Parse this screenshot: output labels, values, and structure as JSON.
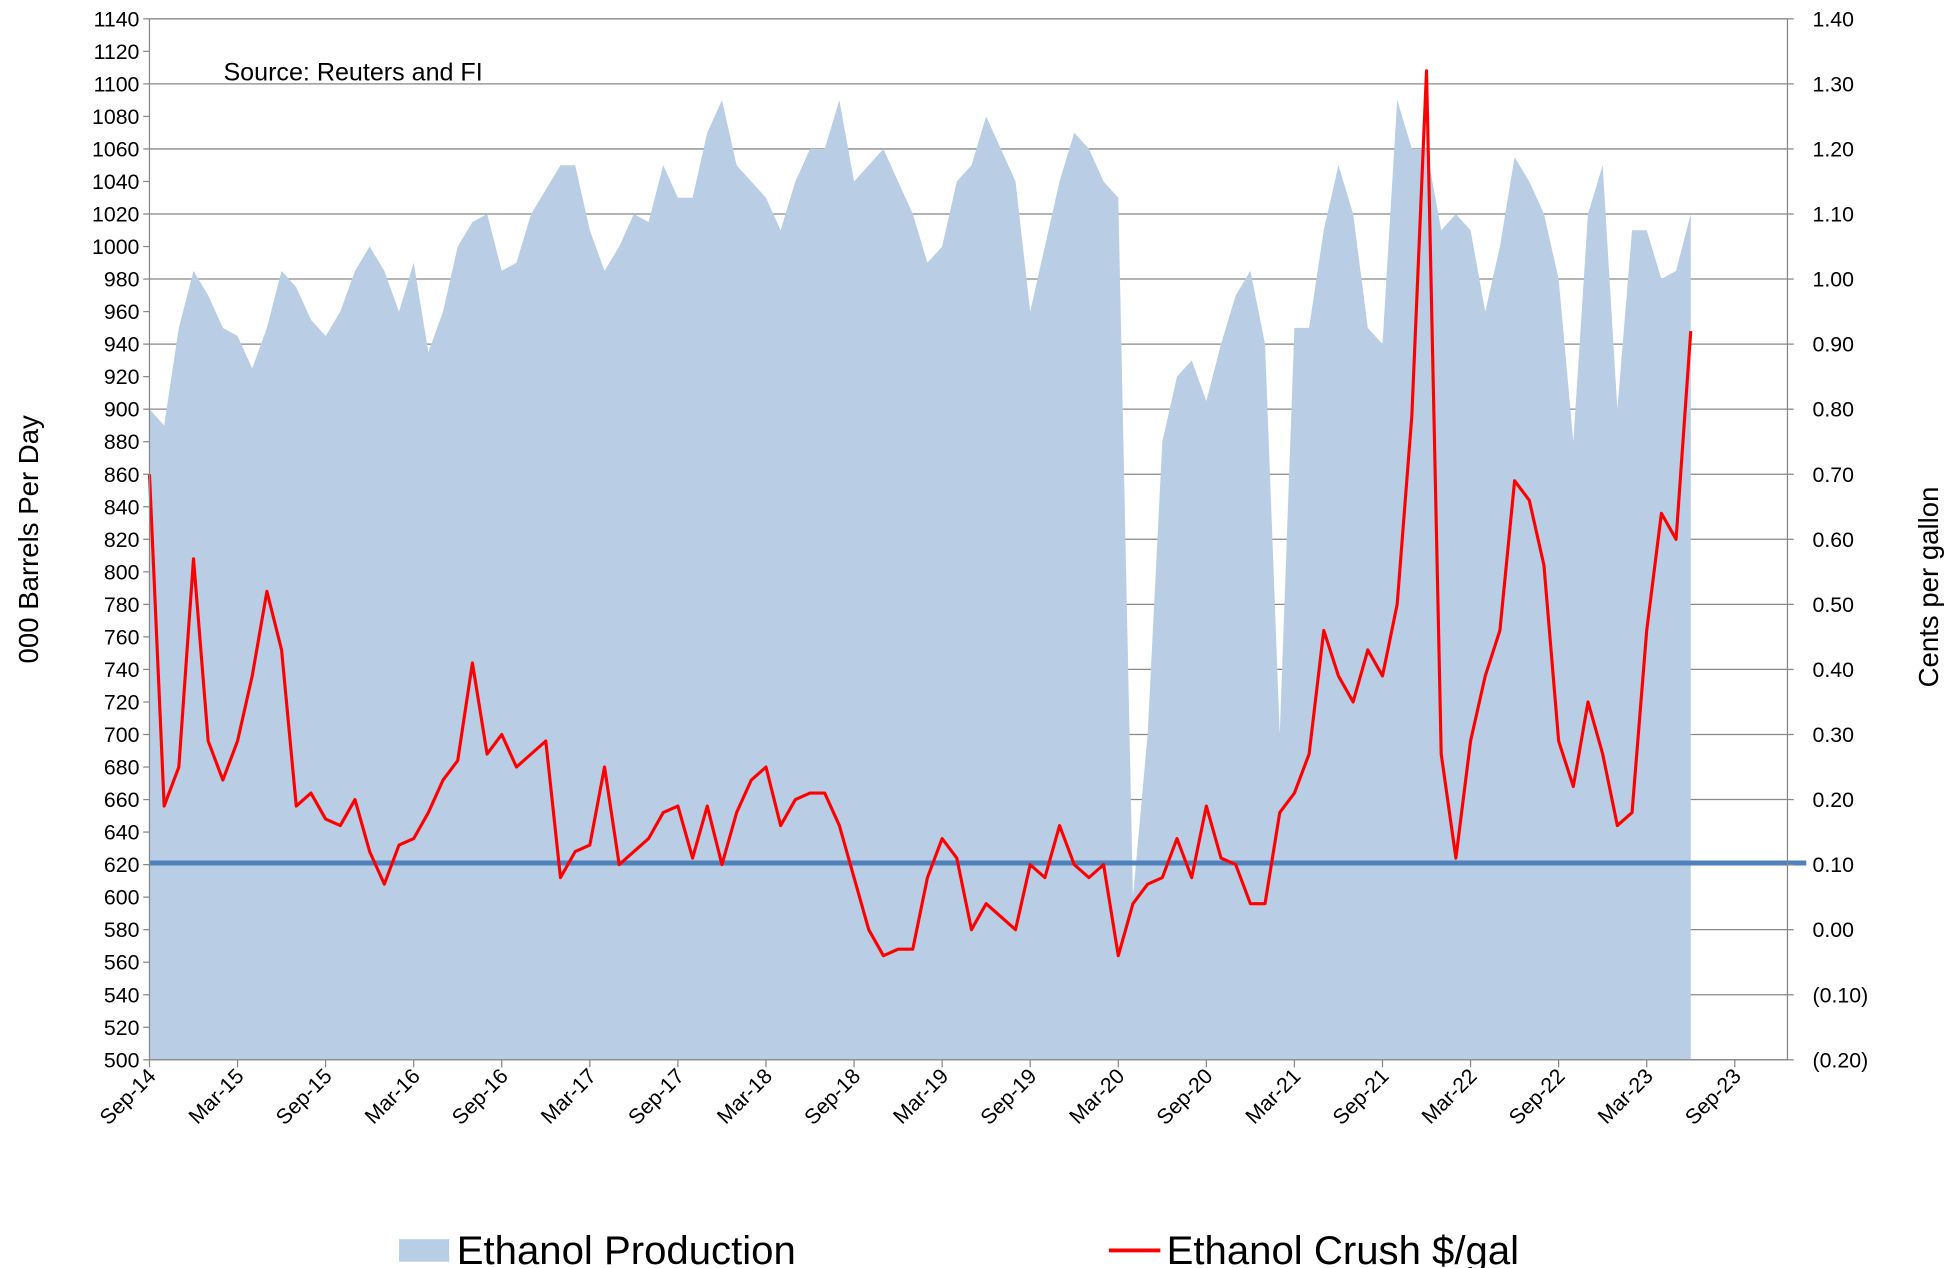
{
  "chart_data": {
    "type": "area_line",
    "annotation": "Source: Reuters and FI",
    "y_label": "000 Barrels Per Day",
    "y2_label": "Cents per gallon",
    "categories": [
      "Sep-14",
      null,
      null,
      null,
      null,
      null,
      "Mar-15",
      null,
      null,
      null,
      null,
      null,
      "Sep-15",
      null,
      null,
      null,
      null,
      null,
      "Mar-16",
      null,
      null,
      null,
      null,
      null,
      "Sep-16",
      null,
      null,
      null,
      null,
      null,
      "Mar-17",
      null,
      null,
      null,
      null,
      null,
      "Sep-17",
      null,
      null,
      null,
      null,
      null,
      "Mar-18",
      null,
      null,
      null,
      null,
      null,
      "Sep-18",
      null,
      null,
      null,
      null,
      null,
      "Mar-19",
      null,
      null,
      null,
      null,
      null,
      "Sep-19",
      null,
      null,
      null,
      null,
      null,
      "Mar-20",
      null,
      null,
      null,
      null,
      null,
      "Sep-20",
      null,
      null,
      null,
      null,
      null,
      "Mar-21",
      null,
      null,
      null,
      null,
      null,
      "Sep-21",
      null,
      null,
      null,
      null,
      null,
      "Mar-22",
      null,
      null,
      null,
      null,
      null,
      "Sep-22",
      null,
      null,
      null,
      null,
      null,
      "Mar-23",
      null,
      null,
      null,
      null,
      null,
      "Sep-23"
    ],
    "series": [
      {
        "name": "Ethanol Production",
        "kind": "area",
        "color": "#b9cde5",
        "values": [
          900,
          890,
          950,
          985,
          970,
          950,
          945,
          925,
          950,
          985,
          975,
          955,
          945,
          960,
          985,
          1000,
          985,
          960,
          990,
          935,
          960,
          1000,
          1015,
          1020,
          985,
          990,
          1020,
          1035,
          1050,
          1050,
          1010,
          985,
          1000,
          1020,
          1015,
          1050,
          1030,
          1030,
          1070,
          1090,
          1050,
          1040,
          1030,
          1010,
          1040,
          1060,
          1060,
          1090,
          1040,
          1050,
          1060,
          1040,
          1020,
          990,
          1000,
          1040,
          1050,
          1080,
          1060,
          1040,
          960,
          1000,
          1040,
          1070,
          1060,
          1040,
          1030,
          600,
          700,
          880,
          920,
          930,
          905,
          940,
          970,
          985,
          940,
          700,
          950,
          950,
          1010,
          1050,
          1020,
          950,
          940,
          1090,
          1060,
          1060,
          1010,
          1020,
          1010,
          960,
          1000,
          1055,
          1040,
          1020,
          980,
          880,
          1020,
          1050,
          900,
          1010,
          1010,
          980,
          985,
          1020,
          null,
          null,
          null
        ]
      },
      {
        "name": "Ethanol Crush $/gal",
        "kind": "line",
        "axis": "y2",
        "color": "#ff0000",
        "values": [
          0.7,
          0.19,
          0.25,
          0.57,
          0.29,
          0.23,
          0.29,
          0.39,
          0.52,
          0.43,
          0.19,
          0.21,
          0.17,
          0.16,
          0.2,
          0.12,
          0.07,
          0.13,
          0.14,
          0.18,
          0.23,
          0.26,
          0.41,
          0.27,
          0.3,
          0.25,
          0.27,
          0.29,
          0.08,
          0.12,
          0.13,
          0.25,
          0.1,
          0.12,
          0.14,
          0.18,
          0.19,
          0.11,
          0.19,
          0.1,
          0.18,
          0.23,
          0.25,
          0.16,
          0.2,
          0.21,
          0.21,
          0.16,
          0.08,
          0.0,
          -0.04,
          -0.03,
          -0.03,
          0.08,
          0.14,
          0.11,
          0.0,
          0.04,
          0.02,
          0.0,
          0.1,
          0.08,
          0.16,
          0.1,
          0.08,
          0.1,
          -0.04,
          0.04,
          0.07,
          0.08,
          0.14,
          0.08,
          0.19,
          0.11,
          0.1,
          0.04,
          0.04,
          0.18,
          0.21,
          0.27,
          0.46,
          0.39,
          0.35,
          0.43,
          0.39,
          0.5,
          0.79,
          1.32,
          0.27,
          0.11,
          0.29,
          0.39,
          0.46,
          0.69,
          0.66,
          0.56,
          0.29,
          0.22,
          0.35,
          0.27,
          0.16,
          0.18,
          0.46,
          0.64,
          0.6,
          0.92,
          null,
          null,
          null
        ]
      }
    ],
    "reference_line": {
      "value": 621,
      "color": "#4f81bd"
    },
    "ylim": [
      500,
      1140
    ],
    "yticks": [
      500,
      520,
      540,
      560,
      580,
      600,
      620,
      640,
      660,
      680,
      700,
      720,
      740,
      760,
      780,
      800,
      820,
      840,
      860,
      880,
      900,
      920,
      940,
      960,
      980,
      1000,
      1020,
      1040,
      1060,
      1080,
      1100,
      1120,
      1140
    ],
    "y2lim": [
      -0.2,
      1.4
    ],
    "y2ticks": [
      {
        "value": -0.2,
        "label": "(0.20)"
      },
      {
        "value": -0.1,
        "label": "(0.10)"
      },
      {
        "value": 0,
        "label": "0.00"
      },
      {
        "value": 0.1,
        "label": "0.10"
      },
      {
        "value": 0.2,
        "label": "0.20"
      },
      {
        "value": 0.3,
        "label": "0.30"
      },
      {
        "value": 0.4,
        "label": "0.40"
      },
      {
        "value": 0.5,
        "label": "0.50"
      },
      {
        "value": 0.6,
        "label": "0.60"
      },
      {
        "value": 0.7,
        "label": "0.70"
      },
      {
        "value": 0.8,
        "label": "0.80"
      },
      {
        "value": 0.9,
        "label": "0.90"
      },
      {
        "value": 1.0,
        "label": "1.00"
      },
      {
        "value": 1.1,
        "label": "1.10"
      },
      {
        "value": 1.2,
        "label": "1.20"
      },
      {
        "value": 1.3,
        "label": "1.30"
      },
      {
        "value": 1.4,
        "label": "1.40"
      }
    ],
    "y2_negative_label_color": "#ff0000",
    "grid": "y2",
    "legend": "bottom"
  }
}
